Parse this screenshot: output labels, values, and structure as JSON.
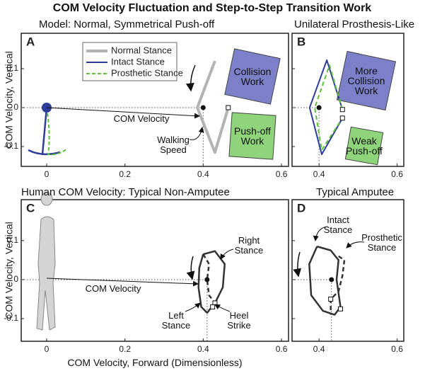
{
  "title": "COM Velocity Fluctuation and Step-to-Step Transition Work",
  "xlabel": "COM Velocity, Forward (Dimensionless)",
  "chart_data": [
    {
      "type": "line",
      "label": "A",
      "title": "Model:  Normal, Symmetrical Push-off",
      "ylabel": "COM Velocity, Vertical",
      "xlim": [
        -0.065,
        0.618
      ],
      "ylim": [
        -0.151,
        0.191
      ],
      "xticks": [
        0,
        0.2,
        0.4,
        0.6
      ],
      "yticks": [
        -0.1,
        0,
        0.1
      ],
      "show_ytick_labels": true,
      "legend": [
        {
          "name": "Normal Stance",
          "color": "#b3b3b3",
          "width": 4,
          "dashed": false
        },
        {
          "name": "Intact Stance",
          "color": "#2e3d99",
          "width": 2,
          "dashed": false
        },
        {
          "name": "Prosthetic Stance",
          "color": "#5cbf3a",
          "width": 2,
          "dashed": true
        }
      ],
      "series": [
        {
          "name": "Normal Stance",
          "color": "#b3b3b3",
          "width": 4,
          "dashed": false,
          "x": [
            0.43,
            0.385,
            0.43,
            0.464
          ],
          "values": [
            0.12,
            0,
            -0.115,
            0
          ]
        }
      ],
      "markers": [
        {
          "x": 0.4,
          "y": 0,
          "shape": "dot"
        },
        {
          "x": 0.464,
          "y": 0,
          "shape": "square"
        }
      ],
      "boxes": [
        {
          "label": "Collision\nWork",
          "color": "#7b80c8"
        },
        {
          "label": "Push-off\nWork",
          "color": "#8fd47a"
        }
      ],
      "annotations": [
        "COM Velocity",
        "Walking\nSpeed"
      ]
    },
    {
      "type": "line",
      "label": "B",
      "title": "Unilateral Prosthesis-Like",
      "xlim": [
        0.331,
        0.617
      ],
      "ylim": [
        -0.151,
        0.191
      ],
      "xticks": [
        0.4,
        0.6
      ],
      "yticks": [
        -0.1,
        0,
        0.1
      ],
      "show_ytick_labels": false,
      "series": [
        {
          "name": "Intact Stance",
          "color": "#2e3d99",
          "width": 2,
          "dashed": false,
          "x": [
            0.46,
            0.42,
            0.376,
            0.407,
            0.46
          ],
          "values": [
            -0.005,
            0.122,
            0,
            -0.12,
            -0.027
          ]
        },
        {
          "name": "Prosthetic Stance",
          "color": "#5cbf3a",
          "width": 2,
          "dashed": true,
          "x": [
            0.46,
            0.427,
            0.389,
            0.407,
            0.46
          ],
          "values": [
            -0.005,
            0.109,
            0,
            -0.109,
            -0.027
          ]
        }
      ],
      "markers": [
        {
          "x": 0.4,
          "y": 0,
          "shape": "dot"
        },
        {
          "x": 0.46,
          "y": -0.005,
          "shape": "square"
        },
        {
          "x": 0.46,
          "y": -0.027,
          "shape": "square"
        }
      ],
      "boxes": [
        {
          "label": "More\nCollision\nWork",
          "color": "#7b80c8"
        },
        {
          "label": "Weak\nPush-off",
          "color": "#8fd47a"
        }
      ],
      "annotations": []
    },
    {
      "type": "line",
      "label": "C",
      "title": "Human COM Velocity:  Typical Non-Amputee",
      "ylabel": "COM Velocity, Vertical",
      "xlim": [
        -0.065,
        0.618
      ],
      "ylim": [
        -0.158,
        0.205
      ],
      "xticks": [
        0,
        0.2,
        0.4,
        0.6
      ],
      "yticks": [
        -0.1,
        0,
        0.1
      ],
      "show_ytick_labels": true,
      "series": [
        {
          "name": "Right Stance",
          "color": "#333333",
          "width": 2.5,
          "dashed": false,
          "x": [
            0.4,
            0.43,
            0.455,
            0.45,
            0.43,
            0.41,
            0.395,
            0.388,
            0.39,
            0.4
          ],
          "values": [
            0.065,
            0.073,
            0.04,
            -0.02,
            -0.06,
            -0.085,
            -0.07,
            -0.02,
            0.03,
            0.065
          ]
        },
        {
          "name": "Left Stance",
          "color": "#333333",
          "width": 2.5,
          "dashed": true,
          "x": [
            0.4,
            0.415,
            0.41,
            0.415,
            0.43
          ],
          "values": [
            0.065,
            0.04,
            0,
            -0.04,
            -0.06
          ]
        }
      ],
      "markers": [
        {
          "x": 0.41,
          "y": 0,
          "shape": "dot"
        },
        {
          "x": 0.43,
          "y": -0.06,
          "shape": "square"
        },
        {
          "x": 0.424,
          "y": -0.07,
          "shape": "square"
        }
      ],
      "annotations": [
        "COM Velocity",
        "Right\nStance",
        "Left\nStance",
        "Heel\nStrike"
      ]
    },
    {
      "type": "line",
      "label": "D",
      "title": "Typical Amputee",
      "xlim": [
        0.331,
        0.617
      ],
      "ylim": [
        -0.158,
        0.205
      ],
      "xticks": [
        0.4,
        0.6
      ],
      "yticks": [
        -0.1,
        0,
        0.1
      ],
      "show_ytick_labels": false,
      "series": [
        {
          "name": "Intact Stance",
          "color": "#333333",
          "width": 2.5,
          "dashed": false,
          "x": [
            0.395,
            0.43,
            0.45,
            0.445,
            0.455,
            0.44,
            0.41,
            0.38,
            0.375,
            0.395
          ],
          "values": [
            0.085,
            0.075,
            0.05,
            0,
            -0.07,
            -0.09,
            -0.08,
            -0.04,
            0.04,
            0.085
          ]
        },
        {
          "name": "Prosthetic Stance",
          "color": "#333333",
          "width": 2.5,
          "dashed": true,
          "x": [
            0.45,
            0.465,
            0.46,
            0.45,
            0.43,
            0.43
          ],
          "values": [
            0.06,
            0.05,
            0.01,
            -0.03,
            -0.05,
            -0.09
          ]
        }
      ],
      "markers": [
        {
          "x": 0.432,
          "y": 0,
          "shape": "dot"
        },
        {
          "x": 0.43,
          "y": -0.05,
          "shape": "square"
        },
        {
          "x": 0.455,
          "y": -0.075,
          "shape": "square"
        }
      ],
      "annotations": [
        "Intact\nStance",
        "Prosthetic\nStance"
      ]
    }
  ]
}
